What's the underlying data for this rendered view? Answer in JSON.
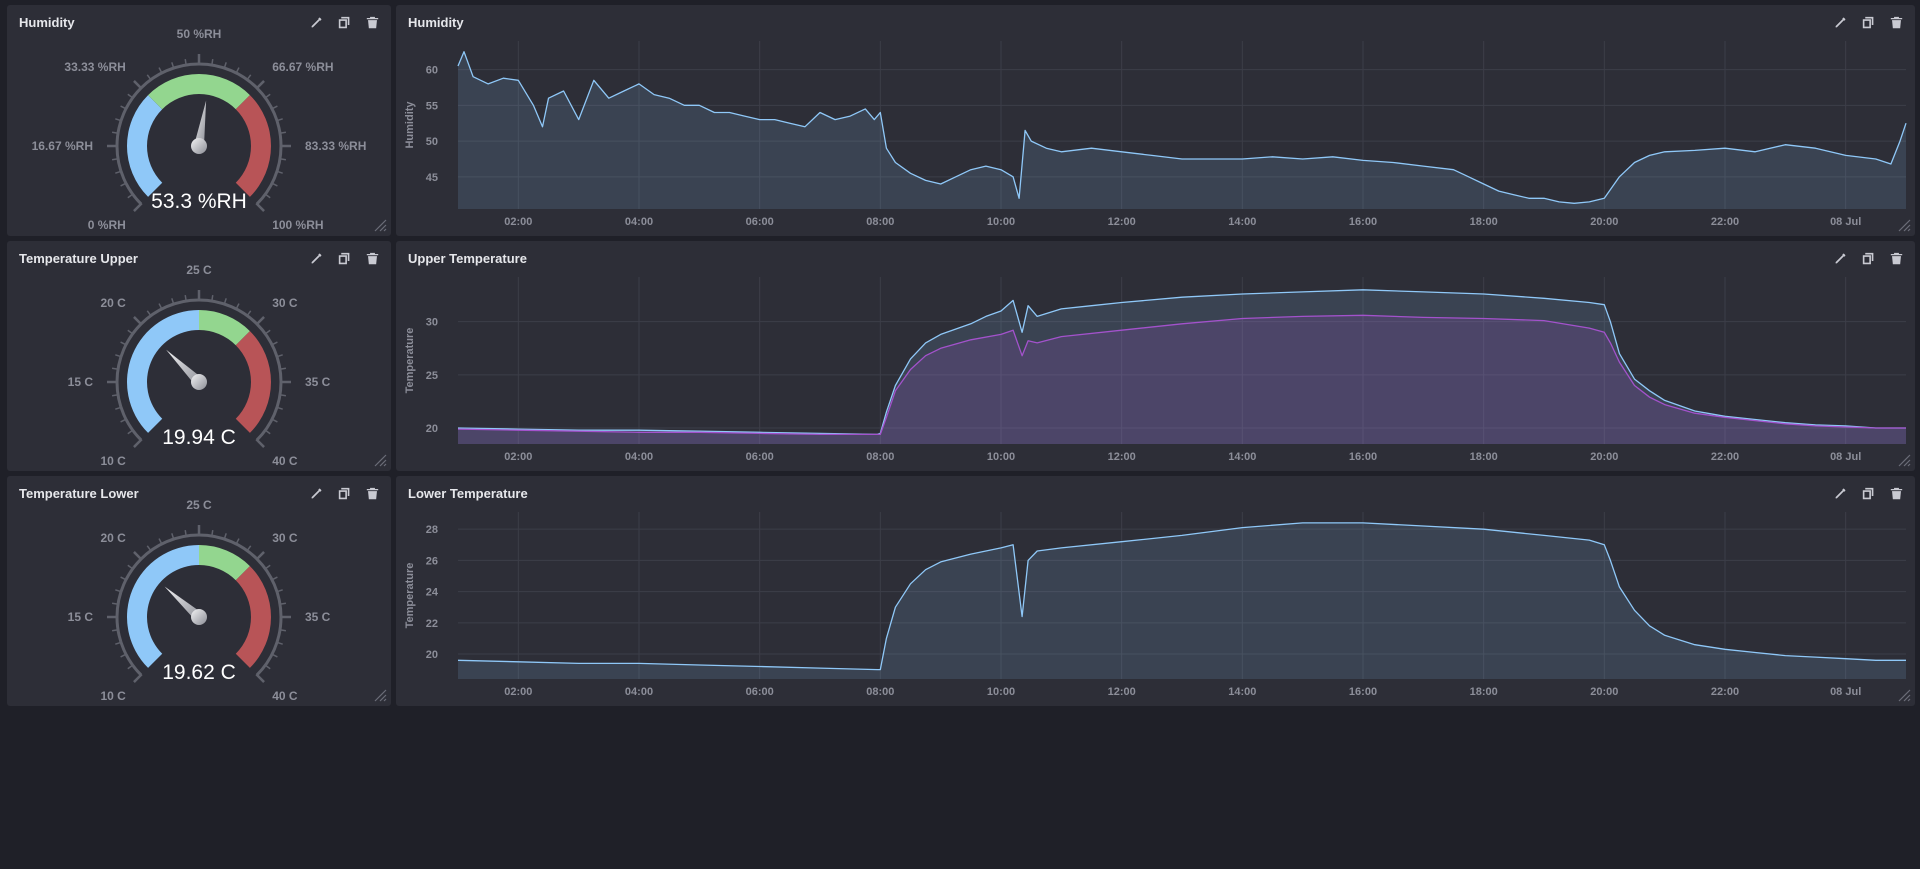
{
  "gauges": [
    {
      "title": "Humidity",
      "value_text": "53.3 %RH",
      "value": 53.3,
      "min": 0,
      "max": 100,
      "labels": [
        "0 %RH",
        "16.67 %RH",
        "33.33 %RH",
        "50 %RH",
        "66.67 %RH",
        "83.33 %RH",
        "100 %RH"
      ],
      "bands": [
        {
          "from": 0,
          "to": 33.33,
          "color": "#8fc8f8"
        },
        {
          "from": 33.33,
          "to": 66.67,
          "color": "#93d68f"
        },
        {
          "from": 66.67,
          "to": 100,
          "color": "#b85457"
        }
      ]
    },
    {
      "title": "Temperature Upper",
      "value_text": "19.94 C",
      "value": 19.94,
      "min": 10,
      "max": 40,
      "labels": [
        "10 C",
        "15 C",
        "20 C",
        "25 C",
        "30 C",
        "35 C",
        "40 C"
      ],
      "bands": [
        {
          "from": 10,
          "to": 25,
          "color": "#8fc8f8"
        },
        {
          "from": 25,
          "to": 30,
          "color": "#93d68f"
        },
        {
          "from": 30,
          "to": 40,
          "color": "#b85457"
        }
      ]
    },
    {
      "title": "Temperature Lower",
      "value_text": "19.62 C",
      "value": 19.62,
      "min": 10,
      "max": 40,
      "labels": [
        "10 C",
        "15 C",
        "20 C",
        "25 C",
        "30 C",
        "35 C",
        "40 C"
      ],
      "bands": [
        {
          "from": 10,
          "to": 25,
          "color": "#8fc8f8"
        },
        {
          "from": 25,
          "to": 30,
          "color": "#93d68f"
        },
        {
          "from": 30,
          "to": 40,
          "color": "#b85457"
        }
      ]
    }
  ],
  "actions": {
    "edit": "pencil-icon",
    "duplicate": "duplicate-icon",
    "delete": "trash-icon"
  },
  "chart_data": [
    {
      "type": "area",
      "title": "Humidity",
      "ylabel": "Humidity",
      "xlabel": "",
      "x_ticks": [
        "02:00",
        "04:00",
        "06:00",
        "08:00",
        "10:00",
        "12:00",
        "14:00",
        "16:00",
        "18:00",
        "20:00",
        "22:00",
        "08 Jul"
      ],
      "y_ticks": [
        45,
        50,
        55,
        60
      ],
      "ylim": [
        40.5,
        64
      ],
      "x_range_hours": [
        1.0,
        25.0
      ],
      "grid": true,
      "series": [
        {
          "color": "#8fc8f8",
          "x": [
            1.0,
            1.1,
            1.25,
            1.5,
            1.75,
            2.0,
            2.25,
            2.4,
            2.5,
            2.75,
            3.0,
            3.25,
            3.5,
            3.75,
            4.0,
            4.25,
            4.5,
            4.75,
            5.0,
            5.25,
            5.5,
            5.75,
            6.0,
            6.25,
            6.5,
            6.75,
            7.0,
            7.25,
            7.5,
            7.75,
            7.9,
            8.0,
            8.1,
            8.25,
            8.5,
            8.75,
            9.0,
            9.25,
            9.5,
            9.75,
            10.0,
            10.2,
            10.3,
            10.4,
            10.5,
            10.75,
            11.0,
            11.5,
            12.0,
            12.5,
            13.0,
            13.5,
            14.0,
            14.5,
            15.0,
            15.5,
            16.0,
            16.5,
            17.0,
            17.5,
            17.75,
            18.0,
            18.25,
            18.5,
            18.75,
            19.0,
            19.25,
            19.5,
            19.75,
            20.0,
            20.25,
            20.5,
            20.75,
            21.0,
            21.5,
            22.0,
            22.5,
            23.0,
            23.5,
            24.0,
            24.5,
            24.75,
            24.9,
            25.0
          ],
          "y": [
            60.5,
            62.5,
            59.0,
            58.0,
            58.8,
            58.5,
            55.0,
            52.0,
            56.0,
            57.0,
            53.0,
            58.5,
            56.0,
            57.0,
            58.0,
            56.5,
            56.0,
            55.0,
            55.0,
            54.0,
            54.0,
            53.5,
            53.0,
            53.0,
            52.5,
            52.0,
            54.0,
            53.0,
            53.5,
            54.5,
            53.0,
            54.0,
            49.0,
            47.0,
            45.5,
            44.5,
            44.0,
            45.0,
            46.0,
            46.5,
            46.0,
            45.0,
            42.0,
            51.5,
            50.0,
            49.0,
            48.5,
            49.0,
            48.5,
            48.0,
            47.5,
            47.5,
            47.5,
            47.8,
            47.5,
            47.8,
            47.3,
            47.0,
            46.5,
            46.0,
            45.0,
            44.0,
            43.0,
            42.5,
            42.0,
            42.0,
            41.5,
            41.3,
            41.5,
            42.0,
            45.0,
            47.0,
            48.0,
            48.5,
            48.7,
            49.0,
            48.5,
            49.5,
            49.0,
            48.0,
            47.5,
            46.8,
            50.0,
            52.5
          ]
        }
      ]
    },
    {
      "type": "area",
      "title": "Upper Temperature",
      "ylabel": "Temperature",
      "xlabel": "",
      "x_ticks": [
        "02:00",
        "04:00",
        "06:00",
        "08:00",
        "10:00",
        "12:00",
        "14:00",
        "16:00",
        "18:00",
        "20:00",
        "22:00",
        "08 Jul"
      ],
      "y_ticks": [
        20,
        25,
        30
      ],
      "ylim": [
        18.5,
        34.2
      ],
      "x_range_hours": [
        1.0,
        25.0
      ],
      "grid": true,
      "series": [
        {
          "color": "#8fc8f8",
          "x": [
            1.0,
            2.0,
            3.0,
            4.0,
            5.0,
            6.0,
            7.0,
            7.95,
            8.0,
            8.1,
            8.25,
            8.5,
            8.75,
            9.0,
            9.5,
            9.75,
            10.0,
            10.2,
            10.35,
            10.45,
            10.6,
            11.0,
            11.5,
            12.0,
            13.0,
            14.0,
            15.0,
            16.0,
            17.0,
            18.0,
            19.0,
            19.75,
            20.0,
            20.1,
            20.25,
            20.5,
            20.75,
            21.0,
            21.5,
            22.0,
            22.5,
            23.0,
            23.5,
            24.0,
            24.5,
            25.0
          ],
          "y": [
            20.0,
            19.9,
            19.8,
            19.8,
            19.7,
            19.6,
            19.5,
            19.4,
            19.5,
            21.5,
            24.0,
            26.5,
            28.0,
            28.8,
            29.8,
            30.5,
            31.0,
            32.0,
            29.0,
            31.5,
            30.5,
            31.2,
            31.5,
            31.8,
            32.3,
            32.6,
            32.8,
            33.0,
            32.8,
            32.6,
            32.2,
            31.8,
            31.6,
            30.0,
            27.0,
            24.6,
            23.5,
            22.6,
            21.6,
            21.1,
            20.8,
            20.5,
            20.3,
            20.2,
            20.0,
            20.0
          ]
        },
        {
          "color": "#a352cc",
          "x": [
            1.0,
            2.0,
            3.0,
            4.0,
            5.0,
            6.0,
            7.0,
            7.95,
            8.0,
            8.1,
            8.25,
            8.5,
            8.75,
            9.0,
            9.5,
            10.0,
            10.2,
            10.35,
            10.45,
            10.6,
            11.0,
            12.0,
            13.0,
            14.0,
            15.0,
            16.0,
            17.0,
            18.0,
            19.0,
            19.75,
            20.0,
            20.1,
            20.25,
            20.5,
            20.75,
            21.0,
            21.5,
            22.0,
            22.5,
            23.0,
            23.5,
            24.0,
            24.5,
            25.0
          ],
          "y": [
            19.9,
            19.8,
            19.7,
            19.6,
            19.6,
            19.5,
            19.4,
            19.4,
            19.4,
            21.0,
            23.5,
            25.5,
            26.8,
            27.5,
            28.3,
            28.8,
            29.2,
            26.8,
            28.2,
            28.0,
            28.6,
            29.2,
            29.8,
            30.3,
            30.5,
            30.6,
            30.4,
            30.3,
            30.1,
            29.4,
            29.0,
            28.0,
            26.2,
            24.0,
            22.9,
            22.2,
            21.4,
            21.0,
            20.7,
            20.4,
            20.2,
            20.1,
            20.0,
            20.0
          ]
        }
      ]
    },
    {
      "type": "area",
      "title": "Lower Temperature",
      "ylabel": "Temperature",
      "xlabel": "",
      "x_ticks": [
        "02:00",
        "04:00",
        "06:00",
        "08:00",
        "10:00",
        "12:00",
        "14:00",
        "16:00",
        "18:00",
        "20:00",
        "22:00",
        "08 Jul"
      ],
      "y_ticks": [
        20,
        22,
        24,
        26,
        28
      ],
      "ylim": [
        18.4,
        29.1
      ],
      "x_range_hours": [
        1.0,
        25.0
      ],
      "grid": true,
      "series": [
        {
          "color": "#8fc8f8",
          "x": [
            1.0,
            2.0,
            3.0,
            4.0,
            5.0,
            6.0,
            7.0,
            7.95,
            8.0,
            8.1,
            8.25,
            8.5,
            8.75,
            9.0,
            9.5,
            10.0,
            10.2,
            10.35,
            10.45,
            10.6,
            11.0,
            12.0,
            13.0,
            14.0,
            15.0,
            16.0,
            17.0,
            18.0,
            19.0,
            19.75,
            20.0,
            20.1,
            20.25,
            20.5,
            20.75,
            21.0,
            21.5,
            22.0,
            22.5,
            23.0,
            23.5,
            24.0,
            24.5,
            25.0
          ],
          "y": [
            19.6,
            19.5,
            19.4,
            19.4,
            19.3,
            19.2,
            19.1,
            19.0,
            19.0,
            21.0,
            23.0,
            24.5,
            25.4,
            25.9,
            26.4,
            26.8,
            27.0,
            22.4,
            26.0,
            26.6,
            26.8,
            27.2,
            27.6,
            28.1,
            28.4,
            28.4,
            28.2,
            28.0,
            27.6,
            27.3,
            27.0,
            26.0,
            24.3,
            22.8,
            21.8,
            21.2,
            20.6,
            20.3,
            20.1,
            19.9,
            19.8,
            19.7,
            19.6,
            19.6
          ]
        }
      ]
    }
  ]
}
